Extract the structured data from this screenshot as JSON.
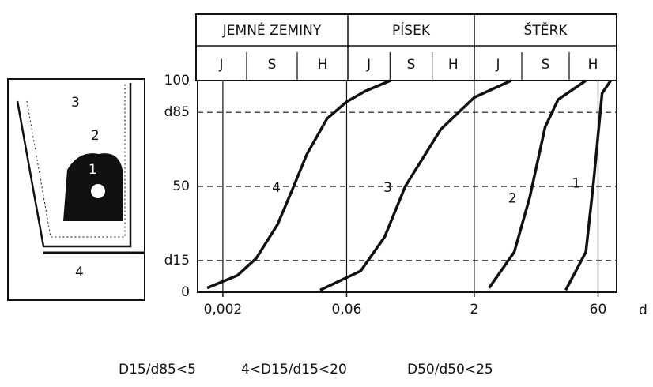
{
  "chart_data": {
    "type": "line",
    "x_label": "d",
    "log_x": true,
    "grid": true,
    "xlim": [
      0.001,
      100
    ],
    "xticks": [
      {
        "value": 0.002,
        "label": "0,002"
      },
      {
        "value": 0.06,
        "label": "0,06"
      },
      2,
      60
    ],
    "ylim": [
      0,
      100
    ],
    "yticks": [
      0,
      {
        "value": 15,
        "label": "d15"
      },
      50,
      {
        "value": 85,
        "label": "d85"
      },
      100
    ],
    "header_groups": [
      {
        "label": "JEMNÉ ZEMINY",
        "subs": [
          "J",
          "S",
          "H"
        ]
      },
      {
        "label": "PÍSEK",
        "subs": [
          "J",
          "S",
          "H"
        ]
      },
      {
        "label": "ŠTĚRK",
        "subs": [
          "J",
          "S",
          "H"
        ]
      }
    ],
    "series": [
      {
        "name": "4",
        "color": "#111111",
        "x": [
          0.0013,
          0.003,
          0.005,
          0.009,
          0.014,
          0.02,
          0.035,
          0.06,
          0.1,
          0.2
        ],
        "values": [
          2,
          8,
          16,
          32,
          50,
          65,
          82,
          90,
          95,
          100
        ]
      },
      {
        "name": "3",
        "color": "#111111",
        "x": [
          0.029,
          0.088,
          0.17,
          0.3,
          0.8,
          2,
          5.5
        ],
        "values": [
          1,
          10,
          26,
          50,
          77,
          92,
          100
        ]
      },
      {
        "name": "2",
        "color": "#111111",
        "x": [
          3,
          6,
          9.2,
          14,
          20,
          43
        ],
        "values": [
          2,
          19,
          45,
          78,
          91,
          100
        ]
      },
      {
        "name": "1",
        "color": "#111111",
        "x": [
          24.7,
          43,
          53,
          67,
          85
        ],
        "values": [
          1,
          19,
          52,
          94,
          100
        ]
      }
    ],
    "inset_labels": [
      "1",
      "2",
      "3",
      "4"
    ],
    "formulas": [
      "D15/d85<5",
      "4<D15/d15<20",
      "D50/d50<25"
    ]
  }
}
